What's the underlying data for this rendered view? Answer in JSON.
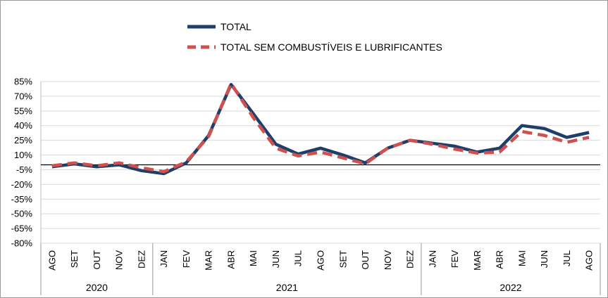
{
  "chart_data": {
    "type": "line",
    "title": "",
    "xlabel": "",
    "ylabel": "",
    "ylim": [
      -80,
      85
    ],
    "yticks": [
      85,
      70,
      55,
      40,
      25,
      10,
      -5,
      -20,
      -35,
      -50,
      -65,
      -80
    ],
    "ytick_labels": [
      "85%",
      "70%",
      "55%",
      "40%",
      "25%",
      "10%",
      "-5%",
      "-20%",
      "-35%",
      "-50%",
      "-65%",
      "-80%"
    ],
    "grid": true,
    "zero_line": true,
    "legend_position": "top-center",
    "categories": [
      "AGO",
      "SET",
      "OUT",
      "NOV",
      "DEZ",
      "JAN",
      "FEV",
      "MAR",
      "ABR",
      "MAI",
      "JUN",
      "JUL",
      "AGO",
      "SET",
      "OUT",
      "NOV",
      "DEZ",
      "JAN",
      "FEV",
      "MAR",
      "ABR",
      "MAI",
      "JUN",
      "JUL",
      "AGO"
    ],
    "year_groups": [
      {
        "label": "2020",
        "start": 0,
        "end": 4
      },
      {
        "label": "2021",
        "start": 5,
        "end": 16
      },
      {
        "label": "2022",
        "start": 17,
        "end": 24
      }
    ],
    "series": [
      {
        "name": "TOTAL",
        "color": "#1f3f6b",
        "style": "solid",
        "values": [
          -2,
          1,
          -2,
          0,
          -6,
          -9,
          2,
          30,
          82,
          52,
          21,
          11,
          17,
          10,
          2,
          17,
          25,
          22,
          19,
          13,
          17,
          40,
          37,
          28,
          33
        ]
      },
      {
        "name": "TOTAL SEM COMBUSTÍVEIS E LUBRIFICANTES",
        "color": "#d05050",
        "style": "dashed",
        "values": [
          -1,
          2,
          -1,
          2,
          -3,
          -7,
          3,
          29,
          83,
          48,
          17,
          9,
          13,
          7,
          1,
          17,
          25,
          21,
          16,
          12,
          13,
          34,
          30,
          23,
          28
        ]
      }
    ]
  }
}
